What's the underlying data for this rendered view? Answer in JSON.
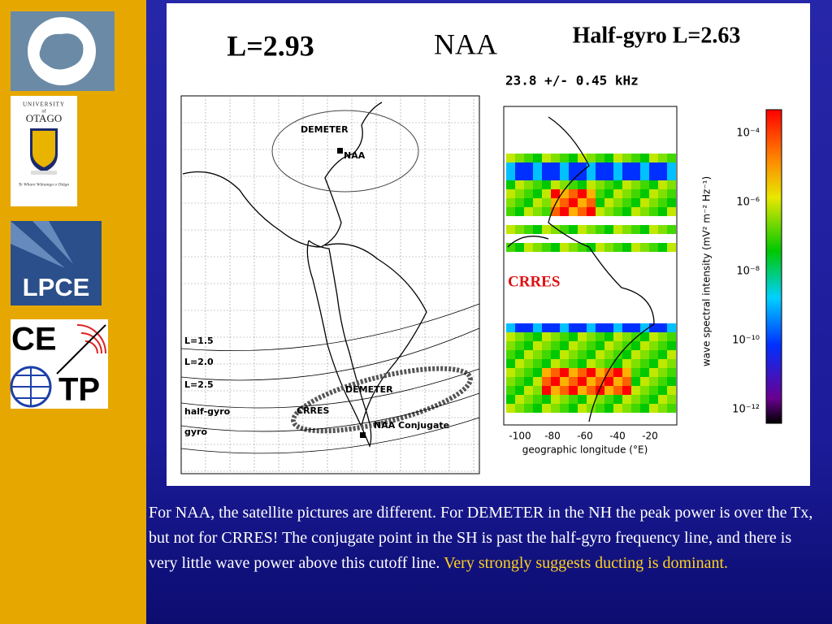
{
  "sidebar": {
    "otago": {
      "university": "UNIVERSITY",
      "of": "of",
      "name": "OTAGO",
      "motto": "Te Whare Wānanga o Otāgo"
    },
    "lpce": "LPCE",
    "cetp": {
      "top": "CE",
      "bottom": "TP"
    }
  },
  "figure": {
    "left_title": "L=2.93",
    "center_title": "NAA",
    "right_title": "Half-gyro L=2.63",
    "left_map": {
      "labels": [
        "DEMETER",
        "NAA",
        "L=1.5",
        "L=2.0",
        "L=2.5",
        "half-gyro",
        "gyro",
        "DEMETER",
        "CRRES",
        "NAA Conjugate"
      ]
    },
    "right_map": {
      "frequency": "23.8 +/- 0.45 kHz",
      "satellite": "CRRES",
      "x_ticks": [
        "-100",
        "-80",
        "-60",
        "-40",
        "-20"
      ],
      "x_label": "geographic longitude (°E)",
      "colorbar_ticks": [
        "10⁻⁴",
        "10⁻⁶",
        "10⁻⁸",
        "10⁻¹⁰",
        "10⁻¹²"
      ],
      "colorbar_label": "wave spectral intensity (mV² m⁻² Hz⁻¹)"
    }
  },
  "body": {
    "text": "For NAA, the satellite pictures are different. For DEMETER in the NH the peak power is over the Tx, but not for CRRES! The conjugate point in the SH is past the half-gyro frequency line, and there is very little wave power above this cutoff line.",
    "highlight": "Very strongly suggests ducting is dominant."
  }
}
